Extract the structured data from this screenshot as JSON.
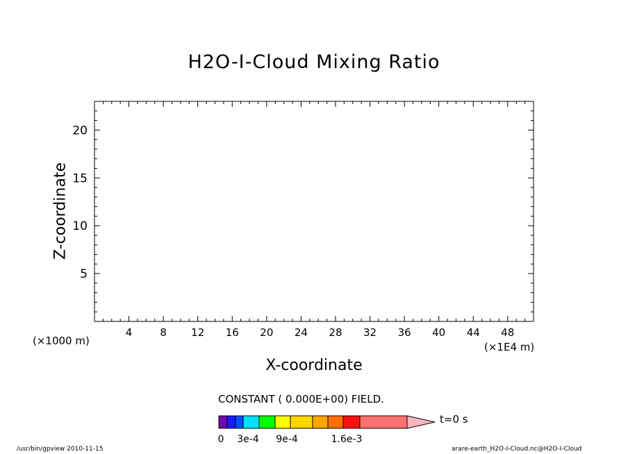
{
  "chart_data": {
    "type": "heatmap",
    "title": "H2O-I-Cloud Mixing Ratio",
    "xlabel": "X-coordinate",
    "ylabel": "Z-coordinate",
    "x_unit": "(×1E4 m)",
    "z_unit": "(×1000 m)",
    "xlim": [
      0,
      51
    ],
    "ylim": [
      0,
      23
    ],
    "x_ticks": [
      "4",
      "8",
      "12",
      "16",
      "20",
      "24",
      "28",
      "32",
      "36",
      "40",
      "44",
      "48"
    ],
    "y_ticks": [
      "5",
      "10",
      "15",
      "20"
    ],
    "field_note": "CONSTANT ( 0.000E+00) FIELD.",
    "time_label": "t=0 s",
    "colorbar": {
      "colors": [
        "#6a0dad",
        "#1a1aff",
        "#0050ff",
        "#00e0ff",
        "#00ff00",
        "#ffff00",
        "#ffd700",
        "#ffa500",
        "#ff7000",
        "#ff1010",
        "#ff7070",
        "#ffb6c1"
      ],
      "tick_labels": [
        "0",
        "3e-4",
        "9e-4",
        "1.6e-3"
      ]
    }
  },
  "footer": {
    "left": "/usr/bin/gpview  2010-11-15",
    "right": "arare-earth_H2O-I-Cloud.nc@H2O-I-Cloud"
  }
}
